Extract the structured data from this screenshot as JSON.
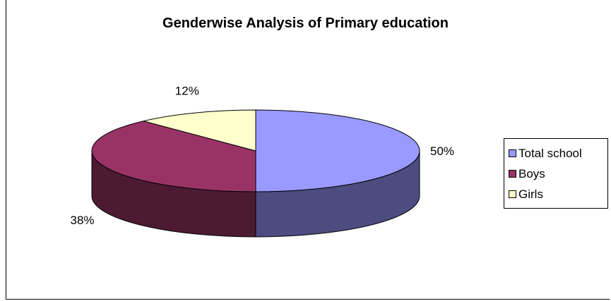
{
  "chart_data": {
    "type": "pie",
    "title": "Genderwise Analysis of Primary education",
    "categories": [
      "Total school",
      "Boys",
      "Girls"
    ],
    "values": [
      50,
      38,
      12
    ],
    "value_labels": [
      "50%",
      "38%",
      "12%"
    ],
    "colors": [
      "#9999FF",
      "#993366",
      "#FFFFCC"
    ],
    "side_colors": [
      "#4C4C80",
      "#4D1A33",
      "#80805F"
    ],
    "legend_position": "right",
    "style": "3d-pie"
  }
}
